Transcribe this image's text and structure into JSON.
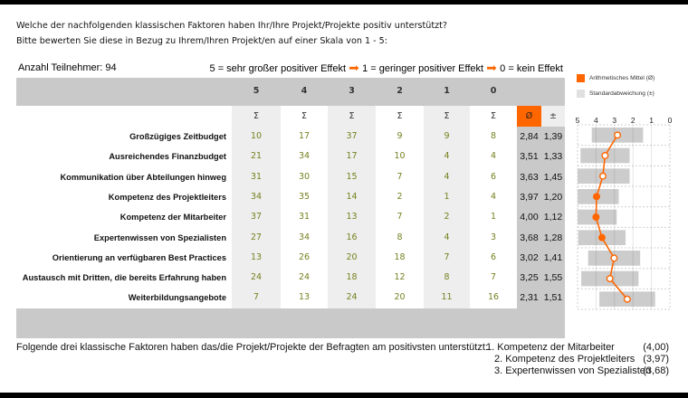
{
  "question": {
    "line1": "Welche der nachfolgenden klassischen Faktoren haben Ihr/Ihre Projekt/Projekte positiv unterstützt?",
    "line2": "Bitte bewerten Sie diese in Bezug zu Ihrem/Ihren Projekt/en auf einer Skala von 1 - 5:"
  },
  "participants": "Anzahl Teilnehmer: 94",
  "scale_legend": {
    "part1": "5 = sehr großer positiver Effekt",
    "part2": "1 = geringer positiver Effekt",
    "part3": "0 = kein Effekt",
    "arrow_icon": "➡"
  },
  "table": {
    "columns": [
      "5",
      "4",
      "3",
      "2",
      "1",
      "0"
    ],
    "sum_symbol": "Σ",
    "mean_header": "Ø",
    "sd_header": "±",
    "rows": [
      {
        "label": "Großzügiges Zeitbudget",
        "counts": [
          "10",
          "17",
          "37",
          "9",
          "9",
          "8"
        ],
        "mean": "2,84",
        "sd": "1,39"
      },
      {
        "label": "Ausreichendes Finanzbudget",
        "counts": [
          "21",
          "34",
          "17",
          "10",
          "4",
          "4"
        ],
        "mean": "3,51",
        "sd": "1,33"
      },
      {
        "label": "Kommunikation über Abteilungen hinweg",
        "counts": [
          "31",
          "30",
          "15",
          "7",
          "4",
          "6"
        ],
        "mean": "3,63",
        "sd": "1,45"
      },
      {
        "label": "Kompetenz des Projektleiters",
        "counts": [
          "34",
          "35",
          "14",
          "2",
          "1",
          "4"
        ],
        "mean": "3,97",
        "sd": "1,20"
      },
      {
        "label": "Kompetenz der Mitarbeiter",
        "counts": [
          "37",
          "31",
          "13",
          "7",
          "2",
          "1"
        ],
        "mean": "4,00",
        "sd": "1,12"
      },
      {
        "label": "Expertenwissen von Spezialisten",
        "counts": [
          "27",
          "34",
          "16",
          "8",
          "4",
          "3"
        ],
        "mean": "3,68",
        "sd": "1,28"
      },
      {
        "label": "Orientierung an verfügbaren Best Practices",
        "counts": [
          "13",
          "26",
          "20",
          "18",
          "7",
          "6"
        ],
        "mean": "3,02",
        "sd": "1,41"
      },
      {
        "label": "Austausch mit Dritten, die bereits Erfahrung haben",
        "counts": [
          "24",
          "24",
          "18",
          "12",
          "8",
          "7"
        ],
        "mean": "3,25",
        "sd": "1,55"
      },
      {
        "label": "Weiterbildungsangebote",
        "counts": [
          "7",
          "13",
          "24",
          "20",
          "11",
          "16"
        ],
        "mean": "2,31",
        "sd": "1,51"
      }
    ]
  },
  "chart_legend": {
    "mean": "Arithmetisches Mittel (Ø)",
    "sd": "Standardabweichung (±)"
  },
  "footer": {
    "intro": "Folgende drei klassische Faktoren haben das/die Projekt/Projekte der Befragten am positivsten unterstützt:",
    "top": [
      {
        "rank": "1. Kompetenz der Mitarbeiter",
        "value": "(4,00)"
      },
      {
        "rank": "2. Kompetenz des Projektleiters",
        "value": "(3,97)"
      },
      {
        "rank": "3. Expertenwissen von Spezialisten",
        "value": "(3,68)"
      }
    ]
  },
  "colors": {
    "accent": "#ff6600",
    "header_gray": "#c9c9c9",
    "stripe": "#eeeeee",
    "number_green": "#76801f",
    "sd_bar": "#cccccc"
  },
  "chart_data": {
    "type": "table",
    "title": "Welche der nachfolgenden klassischen Faktoren haben Ihr/Ihre Projekt/Projekte positiv unterstützt?",
    "columns": [
      "5",
      "4",
      "3",
      "2",
      "1",
      "0",
      "Ø",
      "±"
    ],
    "categories": [
      "Großzügiges Zeitbudget",
      "Ausreichendes Finanzbudget",
      "Kommunikation über Abteilungen hinweg",
      "Kompetenz des Projektleiters",
      "Kompetenz der Mitarbeiter",
      "Expertenwissen von Spezialisten",
      "Orientierung an verfügbaren Best Practices",
      "Austausch mit Dritten, die bereits Erfahrung haben",
      "Weiterbildungsangebote"
    ],
    "series": [
      {
        "name": "5",
        "values": [
          10,
          21,
          31,
          34,
          37,
          27,
          13,
          24,
          7
        ]
      },
      {
        "name": "4",
        "values": [
          17,
          34,
          30,
          35,
          31,
          34,
          26,
          24,
          13
        ]
      },
      {
        "name": "3",
        "values": [
          37,
          17,
          15,
          14,
          13,
          16,
          20,
          18,
          24
        ]
      },
      {
        "name": "2",
        "values": [
          9,
          10,
          7,
          2,
          7,
          8,
          18,
          12,
          20
        ]
      },
      {
        "name": "1",
        "values": [
          9,
          4,
          4,
          1,
          2,
          4,
          7,
          8,
          11
        ]
      },
      {
        "name": "0",
        "values": [
          8,
          4,
          6,
          4,
          1,
          3,
          6,
          7,
          16
        ]
      }
    ],
    "dot_plot": {
      "type": "scatter",
      "x_ticks": [
        "5",
        "4",
        "3",
        "2",
        "1",
        "0"
      ],
      "xlim": [
        5,
        0
      ],
      "reversed": true,
      "grid": true,
      "legend_position": "top-right",
      "mean": [
        2.84,
        3.51,
        3.63,
        3.97,
        4.0,
        3.68,
        3.02,
        3.25,
        2.31
      ],
      "sd": [
        1.39,
        1.33,
        1.45,
        1.2,
        1.12,
        1.28,
        1.41,
        1.55,
        1.51
      ],
      "highlighted": [
        false,
        false,
        false,
        true,
        true,
        true,
        false,
        false,
        false
      ],
      "series_names": [
        "Arithmetisches Mittel (Ø)",
        "Standardabweichung (±)"
      ]
    }
  }
}
